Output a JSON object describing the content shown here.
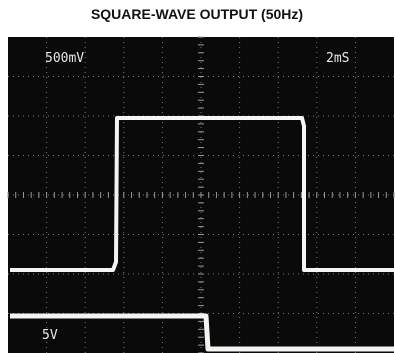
{
  "header": {
    "title": "SQUARE-WAVE OUTPUT (50Hz)"
  },
  "screen": {
    "channel_1_scale": "500mV",
    "timebase": "2mS",
    "channel_2_scale": "5V"
  }
}
